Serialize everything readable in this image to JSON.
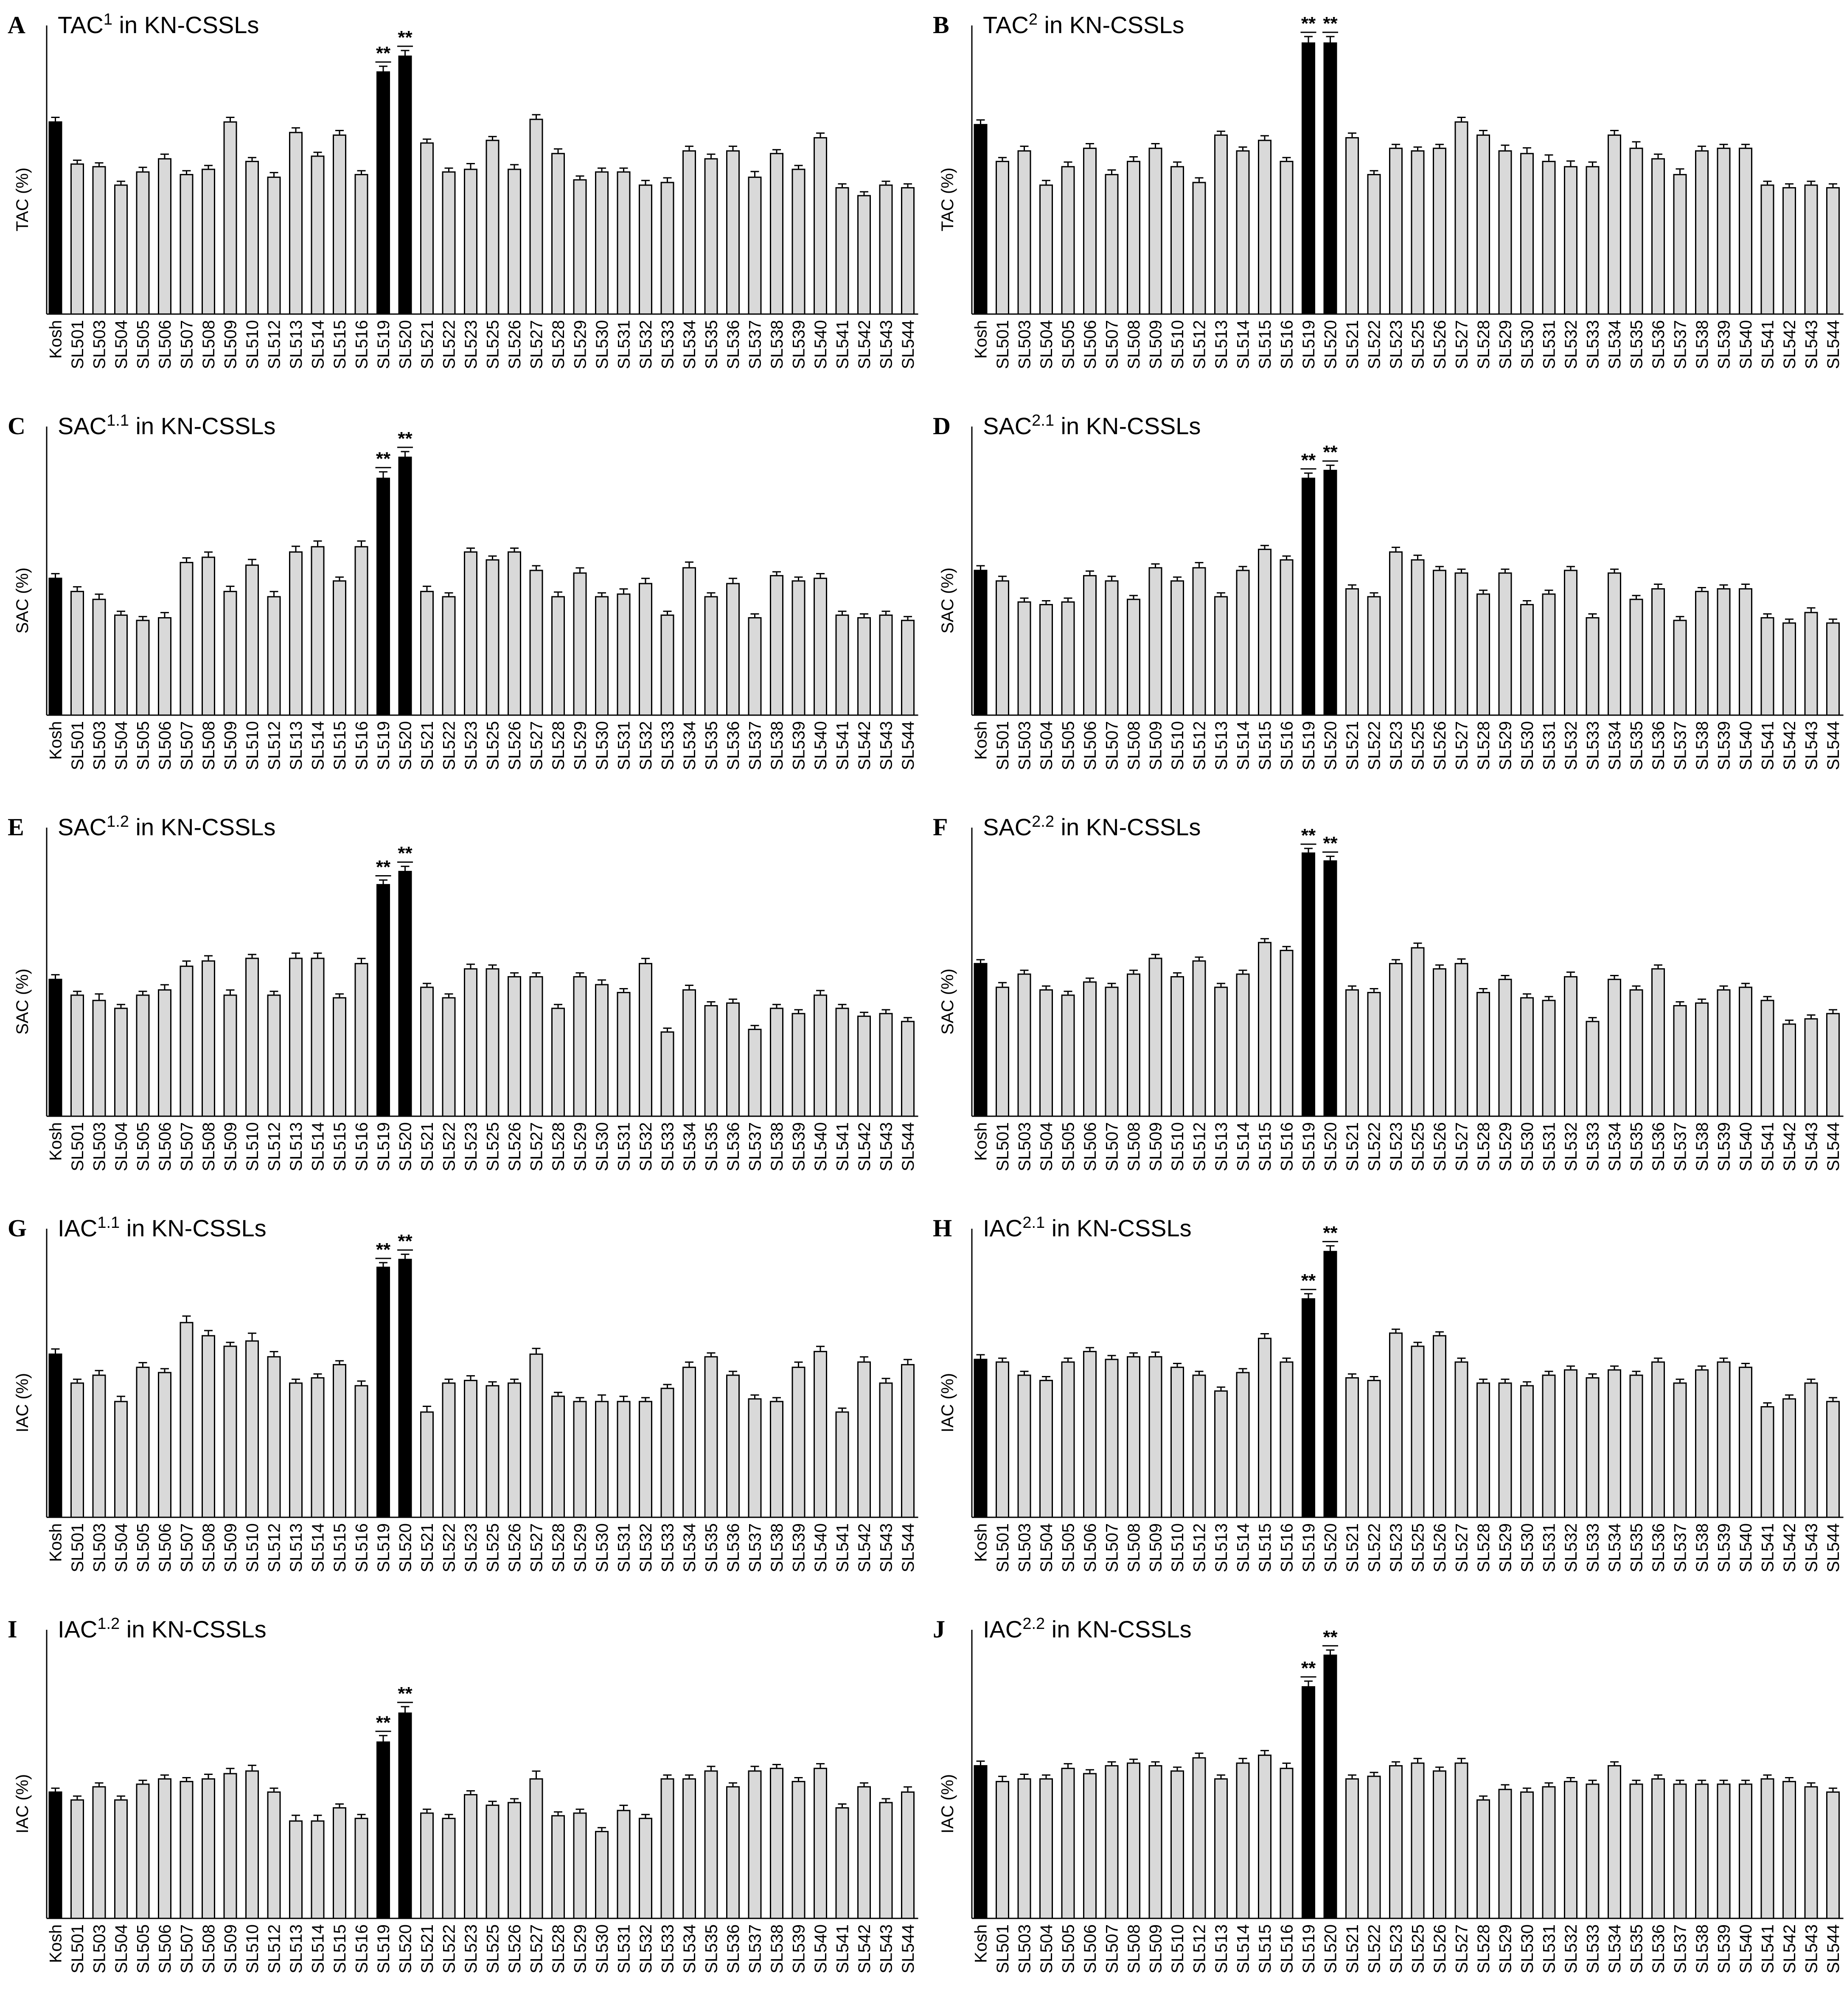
{
  "colors": {
    "control": "#000000",
    "line": "#d9d9d9",
    "highlight": "#000000",
    "stroke": "#000000"
  },
  "categories": [
    "Kosh",
    "SL501",
    "SL503",
    "SL504",
    "SL505",
    "SL506",
    "SL507",
    "SL508",
    "SL509",
    "SL510",
    "SL512",
    "SL513",
    "SL514",
    "SL515",
    "SL516",
    "SL519",
    "SL520",
    "SL521",
    "SL522",
    "SL523",
    "SL525",
    "SL526",
    "SL527",
    "SL528",
    "SL529",
    "SL530",
    "SL531",
    "SL532",
    "SL533",
    "SL534",
    "SL535",
    "SL536",
    "SL537",
    "SL538",
    "SL539",
    "SL540",
    "SL541",
    "SL542",
    "SL543",
    "SL544"
  ],
  "chart_data": [
    {
      "type": "bar",
      "letter": "A",
      "title_main": "TAC",
      "title_sup": "1",
      "title_rest": " in KN-CSSLs",
      "ylabel": "TAC (%)",
      "ylim": [
        0,
        100
      ],
      "significant": [
        "SL519",
        "SL520"
      ],
      "sig_marker": "**",
      "values": [
        73,
        57,
        56,
        49,
        54,
        59,
        53,
        55,
        73,
        58,
        52,
        69,
        60,
        68,
        53,
        92,
        98,
        65,
        54,
        55,
        66,
        55,
        74,
        61,
        51,
        54,
        54,
        49,
        50,
        62,
        59,
        62,
        52,
        61,
        55,
        67,
        48,
        45,
        49,
        48
      ],
      "errors": [
        0.8,
        0.5,
        0.5,
        0.5,
        0.8,
        0.8,
        0.5,
        0.5,
        0.8,
        0.5,
        0.8,
        0.8,
        0.5,
        0.8,
        0.5,
        1.2,
        1.2,
        0.5,
        0.5,
        1.2,
        0.5,
        0.8,
        0.8,
        0.8,
        0.5,
        0.5,
        0.5,
        0.8,
        0.8,
        0.8,
        0.8,
        0.8,
        1.2,
        0.5,
        0.5,
        0.8,
        0.5,
        0.5,
        0.5,
        0.5
      ]
    },
    {
      "type": "bar",
      "letter": "B",
      "title_main": "TAC",
      "title_sup": "2",
      "title_rest": " in KN-CSSLs",
      "ylabel": "TAC (%)",
      "ylim": [
        0,
        100
      ],
      "significant": [
        "SL519",
        "SL520"
      ],
      "sig_marker": "**",
      "values": [
        72,
        58,
        62,
        49,
        56,
        63,
        53,
        58,
        63,
        56,
        50,
        68,
        62,
        66,
        58,
        103,
        103,
        67,
        53,
        63,
        62,
        63,
        73,
        68,
        62,
        61,
        58,
        56,
        56,
        68,
        63,
        59,
        53,
        62,
        63,
        63,
        49,
        48,
        49,
        48
      ],
      "errors": [
        0.8,
        0.5,
        0.8,
        0.8,
        0.8,
        0.8,
        0.8,
        0.8,
        0.8,
        0.8,
        0.8,
        0.5,
        0.5,
        0.8,
        0.5,
        1.5,
        1.5,
        0.8,
        0.5,
        0.5,
        0.5,
        0.5,
        0.8,
        0.8,
        1.2,
        1.2,
        1.5,
        1.2,
        0.8,
        0.8,
        1.5,
        0.8,
        1.2,
        0.8,
        0.5,
        0.5,
        0.5,
        0.5,
        0.5,
        0.5
      ]
    },
    {
      "type": "bar",
      "letter": "C",
      "title_main": "SAC",
      "title_sup": "1.1",
      "title_rest": " in KN-CSSLs",
      "ylabel": "SAC (%)",
      "ylim": [
        0,
        100
      ],
      "significant": [
        "SL519",
        "SL520"
      ],
      "sig_marker": "**",
      "values": [
        52,
        47,
        44,
        38,
        36,
        37,
        58,
        60,
        47,
        57,
        45,
        62,
        64,
        51,
        64,
        90,
        98,
        47,
        45,
        62,
        59,
        62,
        55,
        45,
        54,
        45,
        46,
        50,
        38,
        56,
        45,
        50,
        37,
        53,
        51,
        52,
        38,
        37,
        38,
        36
      ],
      "errors": [
        0.8,
        0.8,
        1.0,
        0.5,
        0.5,
        1.0,
        0.8,
        1.0,
        1.0,
        1.2,
        1.0,
        1.2,
        1.2,
        0.5,
        1.2,
        1.5,
        1.2,
        1.0,
        0.5,
        0.5,
        0.5,
        0.5,
        0.8,
        0.8,
        1.0,
        0.5,
        1.0,
        1.0,
        0.5,
        1.2,
        0.5,
        1.0,
        0.5,
        0.5,
        0.5,
        0.8,
        0.5,
        0.5,
        0.5,
        0.5
      ]
    },
    {
      "type": "bar",
      "letter": "D",
      "title_main": "SAC",
      "title_sup": "2.1",
      "title_rest": " in KN-CSSLs",
      "ylabel": "SAC (%)",
      "ylim": [
        0,
        100
      ],
      "significant": [
        "SL519",
        "SL520"
      ],
      "sig_marker": "**",
      "values": [
        55,
        51,
        43,
        42,
        43,
        53,
        51,
        44,
        56,
        51,
        56,
        45,
        55,
        63,
        59,
        90,
        93,
        48,
        45,
        62,
        59,
        55,
        54,
        46,
        54,
        42,
        46,
        55,
        37,
        54,
        44,
        48,
        36,
        47,
        48,
        48,
        37,
        35,
        39,
        35
      ],
      "errors": [
        0.8,
        0.8,
        0.5,
        0.5,
        0.5,
        0.8,
        0.8,
        0.5,
        0.5,
        0.5,
        1.0,
        0.5,
        0.5,
        0.5,
        0.5,
        1.0,
        1.0,
        0.5,
        0.5,
        0.8,
        0.8,
        0.5,
        0.5,
        0.5,
        0.5,
        0.5,
        0.5,
        0.5,
        0.5,
        0.5,
        0.5,
        0.8,
        0.5,
        0.5,
        0.5,
        0.8,
        0.5,
        0.5,
        0.8,
        0.5
      ]
    },
    {
      "type": "bar",
      "letter": "E",
      "title_main": "SAC",
      "title_sup": "1.2",
      "title_rest": " in KN-CSSLs",
      "ylabel": "SAC (%)",
      "ylim": [
        0,
        100
      ],
      "significant": [
        "SL519",
        "SL520"
      ],
      "sig_marker": "**",
      "values": [
        52,
        46,
        44,
        41,
        46,
        48,
        57,
        59,
        46,
        60,
        46,
        60,
        60,
        45,
        58,
        88,
        93,
        49,
        45,
        56,
        56,
        53,
        53,
        41,
        53,
        50,
        47,
        58,
        32,
        48,
        42,
        43,
        33,
        41,
        39,
        46,
        41,
        38,
        39,
        36
      ],
      "errors": [
        0.8,
        0.5,
        1.5,
        0.5,
        0.5,
        1.0,
        1.0,
        1.0,
        1.0,
        0.5,
        0.5,
        1.0,
        1.0,
        0.5,
        1.0,
        0.8,
        1.0,
        0.5,
        0.5,
        0.8,
        0.5,
        0.5,
        0.5,
        0.5,
        0.5,
        0.8,
        0.5,
        1.0,
        0.5,
        0.8,
        0.5,
        0.5,
        0.5,
        0.5,
        0.5,
        0.8,
        0.5,
        0.5,
        0.5,
        0.5
      ]
    },
    {
      "type": "bar",
      "letter": "F",
      "title_main": "SAC",
      "title_sup": "2.2",
      "title_rest": " in KN-CSSLs",
      "ylabel": "SAC (%)",
      "ylim": [
        0,
        100
      ],
      "significant": [
        "SL519",
        "SL520"
      ],
      "sig_marker": "**",
      "values": [
        58,
        49,
        54,
        48,
        46,
        51,
        49,
        54,
        60,
        53,
        59,
        49,
        54,
        66,
        63,
        100,
        97,
        48,
        47,
        58,
        64,
        56,
        58,
        47,
        52,
        45,
        44,
        53,
        36,
        52,
        48,
        56,
        42,
        43,
        48,
        49,
        44,
        35,
        37,
        39
      ],
      "errors": [
        0.5,
        0.8,
        0.5,
        0.5,
        0.5,
        0.5,
        0.5,
        0.5,
        0.5,
        0.5,
        0.5,
        0.5,
        0.5,
        0.5,
        0.5,
        0.8,
        0.8,
        0.5,
        0.5,
        0.5,
        0.8,
        0.5,
        0.8,
        0.5,
        0.5,
        0.5,
        0.5,
        0.8,
        0.5,
        0.5,
        0.5,
        0.5,
        0.5,
        0.5,
        0.5,
        0.5,
        0.5,
        0.5,
        0.5,
        0.5
      ]
    },
    {
      "type": "bar",
      "letter": "G",
      "title_main": "IAC",
      "title_sup": "1.1",
      "title_rest": " in KN-CSSLs",
      "ylabel": "IAC (%)",
      "ylim": [
        0,
        100
      ],
      "significant": [
        "SL519",
        "SL520"
      ],
      "sig_marker": "**",
      "values": [
        62,
        51,
        54,
        44,
        57,
        55,
        74,
        69,
        65,
        67,
        61,
        51,
        53,
        58,
        50,
        95,
        98,
        40,
        51,
        52,
        50,
        51,
        62,
        46,
        44,
        44,
        44,
        44,
        49,
        57,
        61,
        54,
        45,
        44,
        57,
        63,
        40,
        59,
        51,
        58
      ],
      "errors": [
        1.0,
        0.5,
        0.8,
        1.0,
        0.8,
        0.5,
        1.5,
        1.0,
        0.5,
        2.0,
        1.0,
        0.5,
        0.5,
        0.5,
        0.8,
        0.8,
        1.0,
        1.2,
        0.5,
        0.8,
        0.5,
        0.5,
        1.2,
        0.5,
        0.5,
        1.5,
        1.0,
        0.5,
        0.5,
        1.0,
        0.5,
        0.5,
        0.5,
        0.5,
        1.0,
        1.0,
        0.5,
        1.0,
        0.8,
        1.0
      ]
    },
    {
      "type": "bar",
      "letter": "H",
      "title_main": "IAC",
      "title_sup": "2.1",
      "title_rest": " in KN-CSSLs",
      "ylabel": "IAC (%)",
      "ylim": [
        0,
        100
      ],
      "significant": [
        "SL519",
        "SL520"
      ],
      "sig_marker": "**",
      "values": [
        60,
        59,
        54,
        52,
        59,
        63,
        60,
        61,
        61,
        57,
        54,
        48,
        55,
        68,
        59,
        83,
        101,
        53,
        52,
        70,
        65,
        69,
        59,
        51,
        51,
        50,
        54,
        56,
        53,
        56,
        54,
        59,
        51,
        56,
        59,
        57,
        42,
        45,
        51,
        44
      ],
      "errors": [
        0.8,
        0.5,
        0.5,
        0.5,
        0.5,
        0.5,
        0.5,
        0.5,
        0.8,
        0.5,
        0.5,
        0.5,
        0.5,
        0.8,
        0.5,
        1.0,
        1.2,
        0.5,
        0.5,
        0.5,
        0.5,
        0.5,
        0.5,
        0.5,
        0.5,
        0.5,
        0.5,
        0.5,
        0.5,
        0.5,
        0.5,
        0.5,
        0.5,
        0.5,
        0.5,
        0.5,
        0.5,
        0.5,
        0.5,
        0.5
      ]
    },
    {
      "type": "bar",
      "letter": "I",
      "title_main": "IAC",
      "title_sup": "1.2",
      "title_rest": " in KN-CSSLs",
      "ylabel": "IAC (%)",
      "ylim": [
        0,
        100
      ],
      "significant": [
        "SL519",
        "SL520"
      ],
      "sig_marker": "**",
      "values": [
        48,
        45,
        50,
        45,
        51,
        53,
        52,
        53,
        55,
        56,
        48,
        37,
        37,
        42,
        38,
        67,
        78,
        40,
        38,
        47,
        43,
        44,
        53,
        39,
        40,
        33,
        41,
        38,
        53,
        53,
        56,
        50,
        56,
        57,
        52,
        57,
        42,
        50,
        44,
        48
      ],
      "errors": [
        0.5,
        0.5,
        0.5,
        0.5,
        0.5,
        0.5,
        0.5,
        0.8,
        1.0,
        1.2,
        0.5,
        1.2,
        1.2,
        0.5,
        0.5,
        1.5,
        1.5,
        0.5,
        0.5,
        0.5,
        0.5,
        0.5,
        2.0,
        0.5,
        0.5,
        0.5,
        1.0,
        0.5,
        0.5,
        0.5,
        0.8,
        0.5,
        0.8,
        0.5,
        0.5,
        0.8,
        0.5,
        0.5,
        0.5,
        1.0
      ]
    },
    {
      "type": "bar",
      "letter": "J",
      "title_main": "IAC",
      "title_sup": "2.2",
      "title_rest": " in KN-CSSLs",
      "ylabel": "IAC (%)",
      "ylim": [
        0,
        100
      ],
      "significant": [
        "SL519",
        "SL520"
      ],
      "sig_marker": "**",
      "values": [
        58,
        52,
        53,
        53,
        57,
        55,
        58,
        59,
        58,
        56,
        61,
        53,
        59,
        62,
        57,
        88,
        100,
        53,
        54,
        58,
        59,
        56,
        59,
        45,
        49,
        48,
        50,
        52,
        51,
        58,
        51,
        53,
        51,
        51,
        51,
        51,
        53,
        52,
        50,
        48
      ],
      "errors": [
        0.8,
        1.0,
        0.8,
        0.5,
        0.8,
        0.5,
        0.5,
        0.5,
        0.5,
        0.5,
        0.8,
        0.5,
        0.8,
        0.8,
        1.0,
        1.2,
        1.0,
        0.5,
        0.5,
        0.5,
        0.8,
        0.5,
        0.8,
        0.5,
        0.8,
        0.5,
        0.5,
        0.5,
        0.5,
        0.5,
        0.5,
        0.5,
        0.5,
        0.5,
        0.5,
        0.5,
        0.5,
        0.5,
        0.5,
        0.5
      ]
    }
  ]
}
